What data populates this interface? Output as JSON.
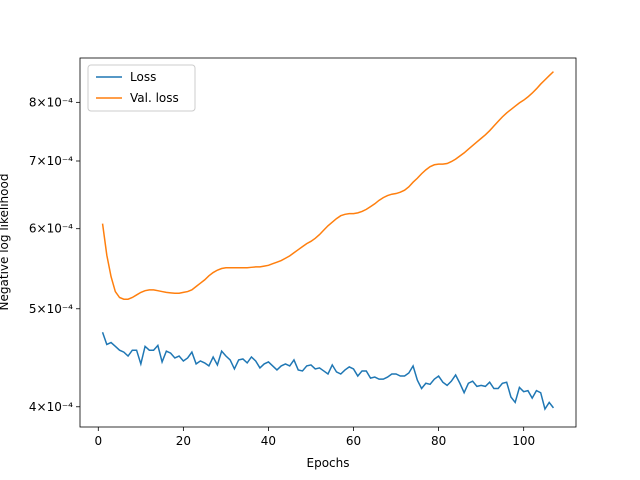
{
  "chart_data": {
    "type": "line",
    "xlabel": "Epochs",
    "ylabel": "Negative log likelihood",
    "log_y": true,
    "legend": "upper left",
    "xlim": [
      -4.3,
      112.3
    ],
    "ylim": [
      0.000382,
      0.000885
    ],
    "xticks": [
      0,
      20,
      40,
      60,
      80,
      100
    ],
    "yticks": [
      {
        "value": 0.0004,
        "label": "4×10⁻⁴"
      },
      {
        "value": 0.0005,
        "label": "5×10⁻⁴"
      },
      {
        "value": 0.0006,
        "label": "6×10⁻⁴"
      },
      {
        "value": 0.0007,
        "label": "7×10⁻⁴"
      },
      {
        "value": 0.0008,
        "label": "8×10⁻⁴"
      }
    ],
    "x": [
      1,
      2,
      3,
      4,
      5,
      6,
      7,
      8,
      9,
      10,
      11,
      12,
      13,
      14,
      15,
      16,
      17,
      18,
      19,
      20,
      21,
      22,
      23,
      24,
      25,
      26,
      27,
      28,
      29,
      30,
      31,
      32,
      33,
      34,
      35,
      36,
      37,
      38,
      39,
      40,
      41,
      42,
      43,
      44,
      45,
      46,
      47,
      48,
      49,
      50,
      51,
      52,
      53,
      54,
      55,
      56,
      57,
      58,
      59,
      60,
      61,
      62,
      63,
      64,
      65,
      66,
      67,
      68,
      69,
      70,
      71,
      72,
      73,
      74,
      75,
      76,
      77,
      78,
      79,
      80,
      81,
      82,
      83,
      84,
      85,
      86,
      87,
      88,
      89,
      90,
      91,
      92,
      93,
      94,
      95,
      96,
      97,
      98,
      99,
      100,
      101,
      102,
      103,
      104,
      105,
      106,
      107
    ],
    "series": [
      {
        "name": "Loss",
        "color": "#1f77b4",
        "values": [
          0.000474,
          0.000461,
          0.000463,
          0.000459,
          0.000455,
          0.000453,
          0.000449,
          0.000455,
          0.000455,
          0.000441,
          0.000459,
          0.000455,
          0.000455,
          0.00046,
          0.000443,
          0.000454,
          0.000452,
          0.000447,
          0.000449,
          0.000444,
          0.000447,
          0.000453,
          0.000441,
          0.000444,
          0.000442,
          0.000439,
          0.000448,
          0.00044,
          0.000454,
          0.000449,
          0.000445,
          0.000436,
          0.000445,
          0.000446,
          0.000442,
          0.000448,
          0.000444,
          0.000437,
          0.000441,
          0.000443,
          0.000439,
          0.000435,
          0.000439,
          0.000441,
          0.000439,
          0.000445,
          0.000435,
          0.000434,
          0.000439,
          0.00044,
          0.000436,
          0.000437,
          0.000434,
          0.000431,
          0.00044,
          0.000433,
          0.000431,
          0.000435,
          0.000438,
          0.000436,
          0.000429,
          0.000434,
          0.000434,
          0.000427,
          0.000428,
          0.000426,
          0.000426,
          0.000428,
          0.000431,
          0.000431,
          0.000429,
          0.000429,
          0.000432,
          0.000439,
          0.000425,
          0.000417,
          0.000422,
          0.000421,
          0.000426,
          0.000429,
          0.000423,
          0.00042,
          0.000424,
          0.00043,
          0.000422,
          0.000413,
          0.000422,
          0.000424,
          0.000419,
          0.00042,
          0.000419,
          0.000423,
          0.000417,
          0.000417,
          0.000422,
          0.000423,
          0.000409,
          0.000404,
          0.000418,
          0.000414,
          0.000415,
          0.000408,
          0.000415,
          0.000413,
          0.000398,
          0.000404,
          0.000399
        ]
      },
      {
        "name": "Val. loss",
        "color": "#ff7f0e",
        "values": [
          0.000607,
          0.000565,
          0.000538,
          0.00052,
          0.000513,
          0.000511,
          0.000511,
          0.000513,
          0.000516,
          0.000519,
          0.000521,
          0.000522,
          0.000522,
          0.000521,
          0.00052,
          0.000519,
          0.0005185,
          0.000518,
          0.000518,
          0.000519,
          0.00052,
          0.000522,
          0.000526,
          0.00053,
          0.000534,
          0.000539,
          0.000543,
          0.000546,
          0.000548,
          0.000549,
          0.000549,
          0.000549,
          0.000549,
          0.000549,
          0.000549,
          0.0005495,
          0.00055,
          0.00055,
          0.000551,
          0.000552,
          0.000554,
          0.000556,
          0.000558,
          0.000561,
          0.000564,
          0.000568,
          0.000572,
          0.000576,
          0.00058,
          0.000583,
          0.000587,
          0.000592,
          0.000598,
          0.000604,
          0.000609,
          0.000614,
          0.000618,
          0.00062,
          0.000621,
          0.000621,
          0.000622,
          0.000624,
          0.000627,
          0.000631,
          0.000635,
          0.00064,
          0.000644,
          0.000647,
          0.000649,
          0.00065,
          0.000652,
          0.000655,
          0.00066,
          0.000667,
          0.000673,
          0.00068,
          0.000686,
          0.000691,
          0.000694,
          0.000695,
          0.000695,
          0.000696,
          0.000699,
          0.000703,
          0.000708,
          0.000713,
          0.000719,
          0.000725,
          0.000731,
          0.000737,
          0.000743,
          0.00075,
          0.000758,
          0.000766,
          0.000774,
          0.000781,
          0.000787,
          0.000793,
          0.000799,
          0.000804,
          0.00081,
          0.000817,
          0.000825,
          0.000834,
          0.000842,
          0.00085,
          0.000858
        ]
      }
    ]
  }
}
